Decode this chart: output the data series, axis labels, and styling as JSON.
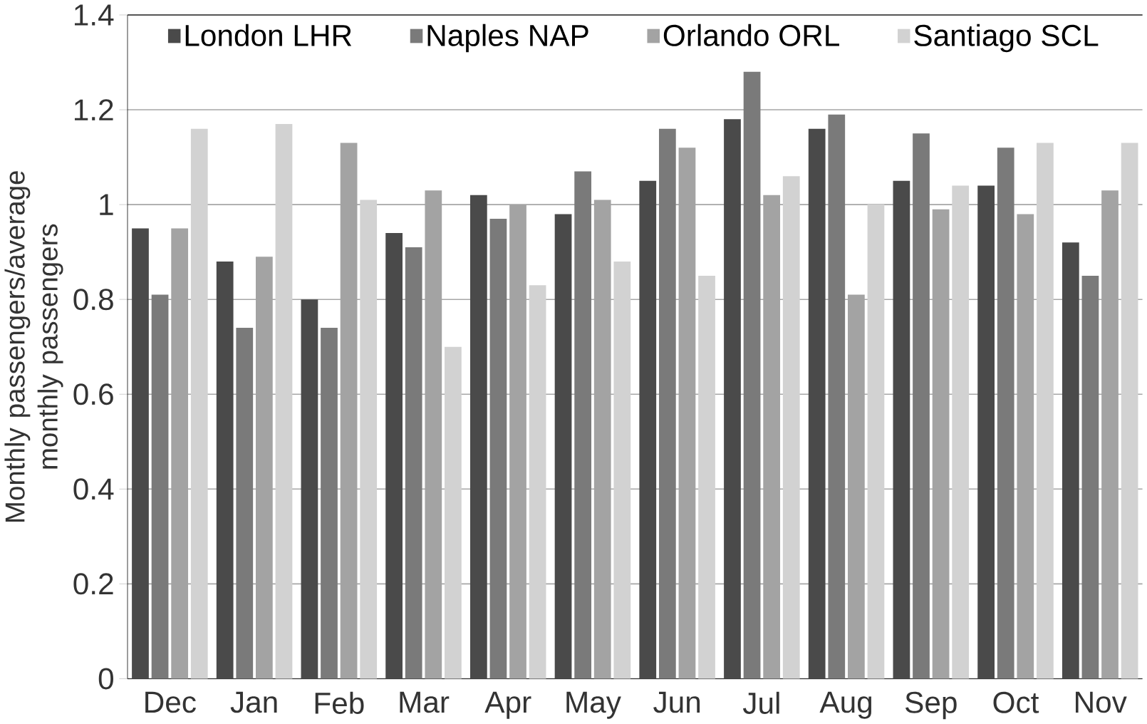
{
  "chart_data": {
    "type": "bar",
    "ylabel": "Monthly passengers/average monthly passengers",
    "categories": [
      "Dec",
      "Jan",
      "Feb",
      "Mar",
      "Apr",
      "May",
      "Jun",
      "Jul",
      "Aug",
      "Sep",
      "Oct",
      "Nov"
    ],
    "series": [
      {
        "name": "London LHR",
        "color": "#4a4a4a",
        "values": [
          0.95,
          0.88,
          0.8,
          0.94,
          1.02,
          0.98,
          1.05,
          1.18,
          1.16,
          1.05,
          1.04,
          0.92
        ]
      },
      {
        "name": "Naples NAP",
        "color": "#7a7a7a",
        "values": [
          0.81,
          0.74,
          0.74,
          0.91,
          0.97,
          1.07,
          1.16,
          1.28,
          1.19,
          1.15,
          1.12,
          0.85
        ]
      },
      {
        "name": "Orlando ORL",
        "color": "#a3a3a3",
        "values": [
          0.95,
          0.89,
          1.13,
          1.03,
          1.0,
          1.01,
          1.12,
          1.02,
          0.81,
          0.99,
          0.98,
          1.03
        ]
      },
      {
        "name": "Santiago SCL",
        "color": "#d2d2d2",
        "values": [
          1.16,
          1.17,
          1.01,
          0.7,
          0.83,
          0.88,
          0.85,
          1.06,
          1.0,
          1.04,
          1.13,
          1.13
        ]
      }
    ],
    "ylim": [
      0,
      1.4
    ],
    "yticks": [
      0,
      0.2,
      0.4,
      0.6,
      0.8,
      1,
      1.2,
      1.4
    ],
    "grid": "y",
    "legend": "top"
  }
}
